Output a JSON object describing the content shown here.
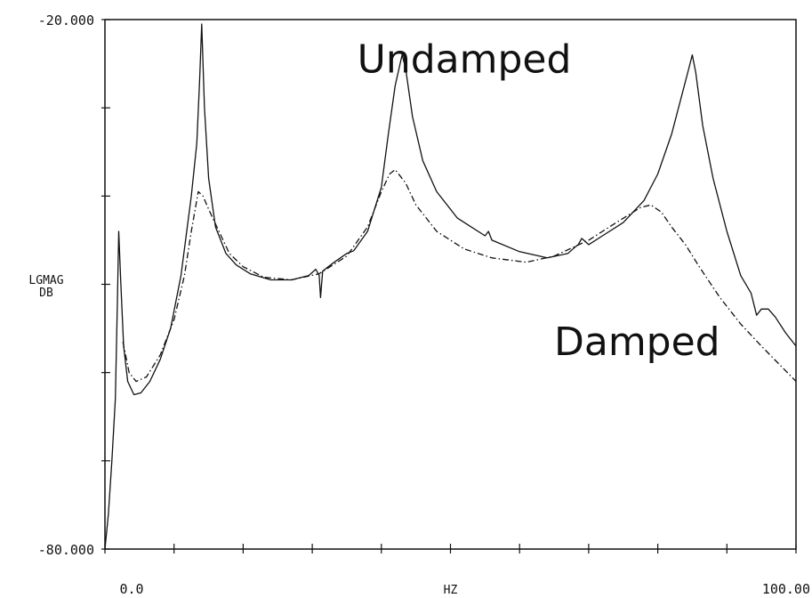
{
  "chart_data": {
    "type": "line",
    "title": "",
    "xlabel": "HZ",
    "ylabel": [
      "LGMAG",
      "DB"
    ],
    "xlim": [
      0,
      100
    ],
    "ylim": [
      -80,
      -20
    ],
    "x_tick_labels": [
      "0.0",
      "100.00"
    ],
    "y_tick_labels": [
      "-20.000",
      "-80.000"
    ],
    "x_ticks_minor": [
      10,
      20,
      30,
      40,
      50,
      60,
      70,
      80,
      90
    ],
    "y_ticks_minor": [
      -30,
      -40,
      -50,
      -60,
      -70
    ],
    "grid": false,
    "legend": "none",
    "annotations": [
      {
        "text": "Undamped",
        "x": 52,
        "y": -26
      },
      {
        "text": "Damped",
        "x": 77,
        "y": -58
      }
    ],
    "series": [
      {
        "style": "solid",
        "color": "#111111",
        "points": [
          [
            0,
            -80
          ],
          [
            0.5,
            -76
          ],
          [
            1,
            -70
          ],
          [
            1.5,
            -63
          ],
          [
            1.8,
            -52
          ],
          [
            2.0,
            -44
          ],
          [
            2.3,
            -50
          ],
          [
            2.7,
            -57
          ],
          [
            3.3,
            -61
          ],
          [
            4.2,
            -62.5
          ],
          [
            5.2,
            -62.3
          ],
          [
            6.5,
            -61
          ],
          [
            8,
            -58.5
          ],
          [
            9.5,
            -55
          ],
          [
            11,
            -49
          ],
          [
            12.5,
            -40
          ],
          [
            13.3,
            -34
          ],
          [
            13.7,
            -27
          ],
          [
            14.0,
            -20.5
          ],
          [
            14.4,
            -30
          ],
          [
            15,
            -38
          ],
          [
            16,
            -43.5
          ],
          [
            17.5,
            -46.5
          ],
          [
            19,
            -47.8
          ],
          [
            21,
            -48.8
          ],
          [
            24,
            -49.5
          ],
          [
            27,
            -49.5
          ],
          [
            29.5,
            -49
          ],
          [
            30.5,
            -48.3
          ],
          [
            31,
            -49
          ],
          [
            31.2,
            -51.5
          ],
          [
            31.5,
            -48.5
          ],
          [
            33,
            -47.6
          ],
          [
            35,
            -46.5
          ],
          [
            36,
            -46.2
          ],
          [
            38,
            -44
          ],
          [
            40,
            -39
          ],
          [
            41,
            -33
          ],
          [
            42,
            -27.5
          ],
          [
            43,
            -24
          ],
          [
            43.5,
            -25.5
          ],
          [
            44.5,
            -31
          ],
          [
            46,
            -36
          ],
          [
            48,
            -39.5
          ],
          [
            51,
            -42.5
          ],
          [
            55,
            -44.5
          ],
          [
            55.5,
            -44
          ],
          [
            56,
            -45
          ],
          [
            60,
            -46.3
          ],
          [
            64,
            -47
          ],
          [
            67,
            -46.5
          ],
          [
            68,
            -45.8
          ],
          [
            68.5,
            -45.5
          ],
          [
            69,
            -44.8
          ],
          [
            70,
            -45.5
          ],
          [
            72,
            -44.5
          ],
          [
            75,
            -43
          ],
          [
            78,
            -40.5
          ],
          [
            80,
            -37.5
          ],
          [
            82,
            -33
          ],
          [
            83.5,
            -28.5
          ],
          [
            84.5,
            -25.5
          ],
          [
            85,
            -24
          ],
          [
            85.5,
            -26
          ],
          [
            86.5,
            -32
          ],
          [
            88,
            -38
          ],
          [
            90,
            -44
          ],
          [
            92,
            -49
          ],
          [
            93.5,
            -51
          ],
          [
            94.3,
            -53.5
          ],
          [
            95,
            -52.8
          ],
          [
            96,
            -52.8
          ],
          [
            97,
            -53.7
          ],
          [
            98.5,
            -55.5
          ],
          [
            100,
            -57
          ]
        ]
      },
      {
        "style": "dash-dot",
        "color": "#111111",
        "points": [
          [
            2.6,
            -56.5
          ],
          [
            3.5,
            -60
          ],
          [
            4.5,
            -61
          ],
          [
            6,
            -60.5
          ],
          [
            8,
            -58
          ],
          [
            10,
            -54
          ],
          [
            11.5,
            -49
          ],
          [
            12.5,
            -44
          ],
          [
            13.5,
            -39.5
          ],
          [
            14.2,
            -40
          ],
          [
            15,
            -41.5
          ],
          [
            16.5,
            -44
          ],
          [
            18,
            -46.5
          ],
          [
            20,
            -48
          ],
          [
            23,
            -49.2
          ],
          [
            27,
            -49.5
          ],
          [
            31,
            -48.8
          ],
          [
            35,
            -46.8
          ],
          [
            38,
            -43.5
          ],
          [
            40,
            -39.5
          ],
          [
            41.2,
            -37.5
          ],
          [
            42,
            -37
          ],
          [
            43.5,
            -38.5
          ],
          [
            45,
            -41
          ],
          [
            48,
            -44
          ],
          [
            52,
            -46
          ],
          [
            56,
            -47
          ],
          [
            61,
            -47.5
          ],
          [
            65,
            -46.8
          ],
          [
            70,
            -45
          ],
          [
            74,
            -43
          ],
          [
            77.5,
            -41.3
          ],
          [
            79,
            -41
          ],
          [
            80.5,
            -41.8
          ],
          [
            82,
            -43.5
          ],
          [
            84,
            -45.5
          ],
          [
            86,
            -48
          ],
          [
            89,
            -51.5
          ],
          [
            92,
            -54.5
          ],
          [
            95,
            -57
          ],
          [
            97.5,
            -59
          ],
          [
            100,
            -61
          ]
        ]
      }
    ]
  }
}
